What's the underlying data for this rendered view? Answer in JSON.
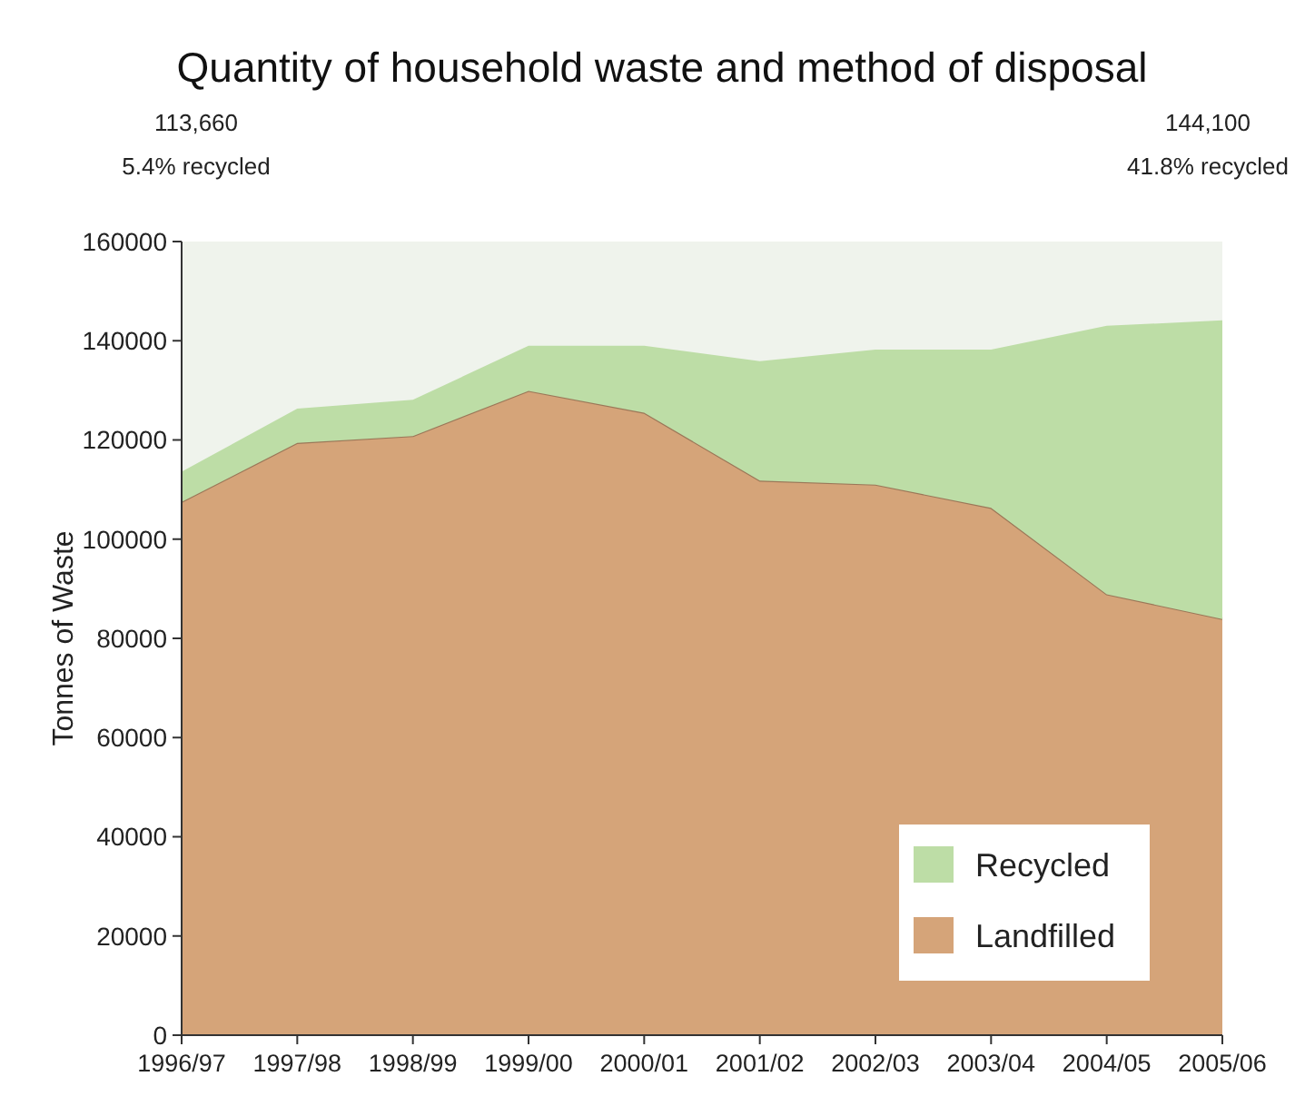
{
  "chart_data": {
    "type": "area",
    "stacked": true,
    "title": "Quantity of household waste and method of disposal",
    "ylabel": "Tonnes of Waste",
    "annotations": [
      "113,660",
      "5.4% recycled",
      "144,100",
      "41.8% recycled"
    ],
    "categories": [
      "1996/97",
      "1997/98",
      "1998/99",
      "1999/00",
      "2000/01",
      "2001/02",
      "2002/03",
      "2003/04",
      "2004/05",
      "2005/06"
    ],
    "series": [
      {
        "name": "Landfilled",
        "color": "#d5a479",
        "values": [
          107500,
          119400,
          120800,
          129900,
          125500,
          111800,
          111000,
          106300,
          88900,
          83900
        ]
      },
      {
        "name": "Recycled",
        "color": "#bddda6",
        "values": [
          6100,
          6900,
          7300,
          9100,
          13500,
          24100,
          27200,
          31900,
          54100,
          60200
        ]
      }
    ],
    "ylim": [
      0,
      160000
    ],
    "yticks": [
      0,
      20000,
      40000,
      60000,
      80000,
      100000,
      120000,
      140000,
      160000
    ],
    "grid": false,
    "legend": "bottom right"
  }
}
